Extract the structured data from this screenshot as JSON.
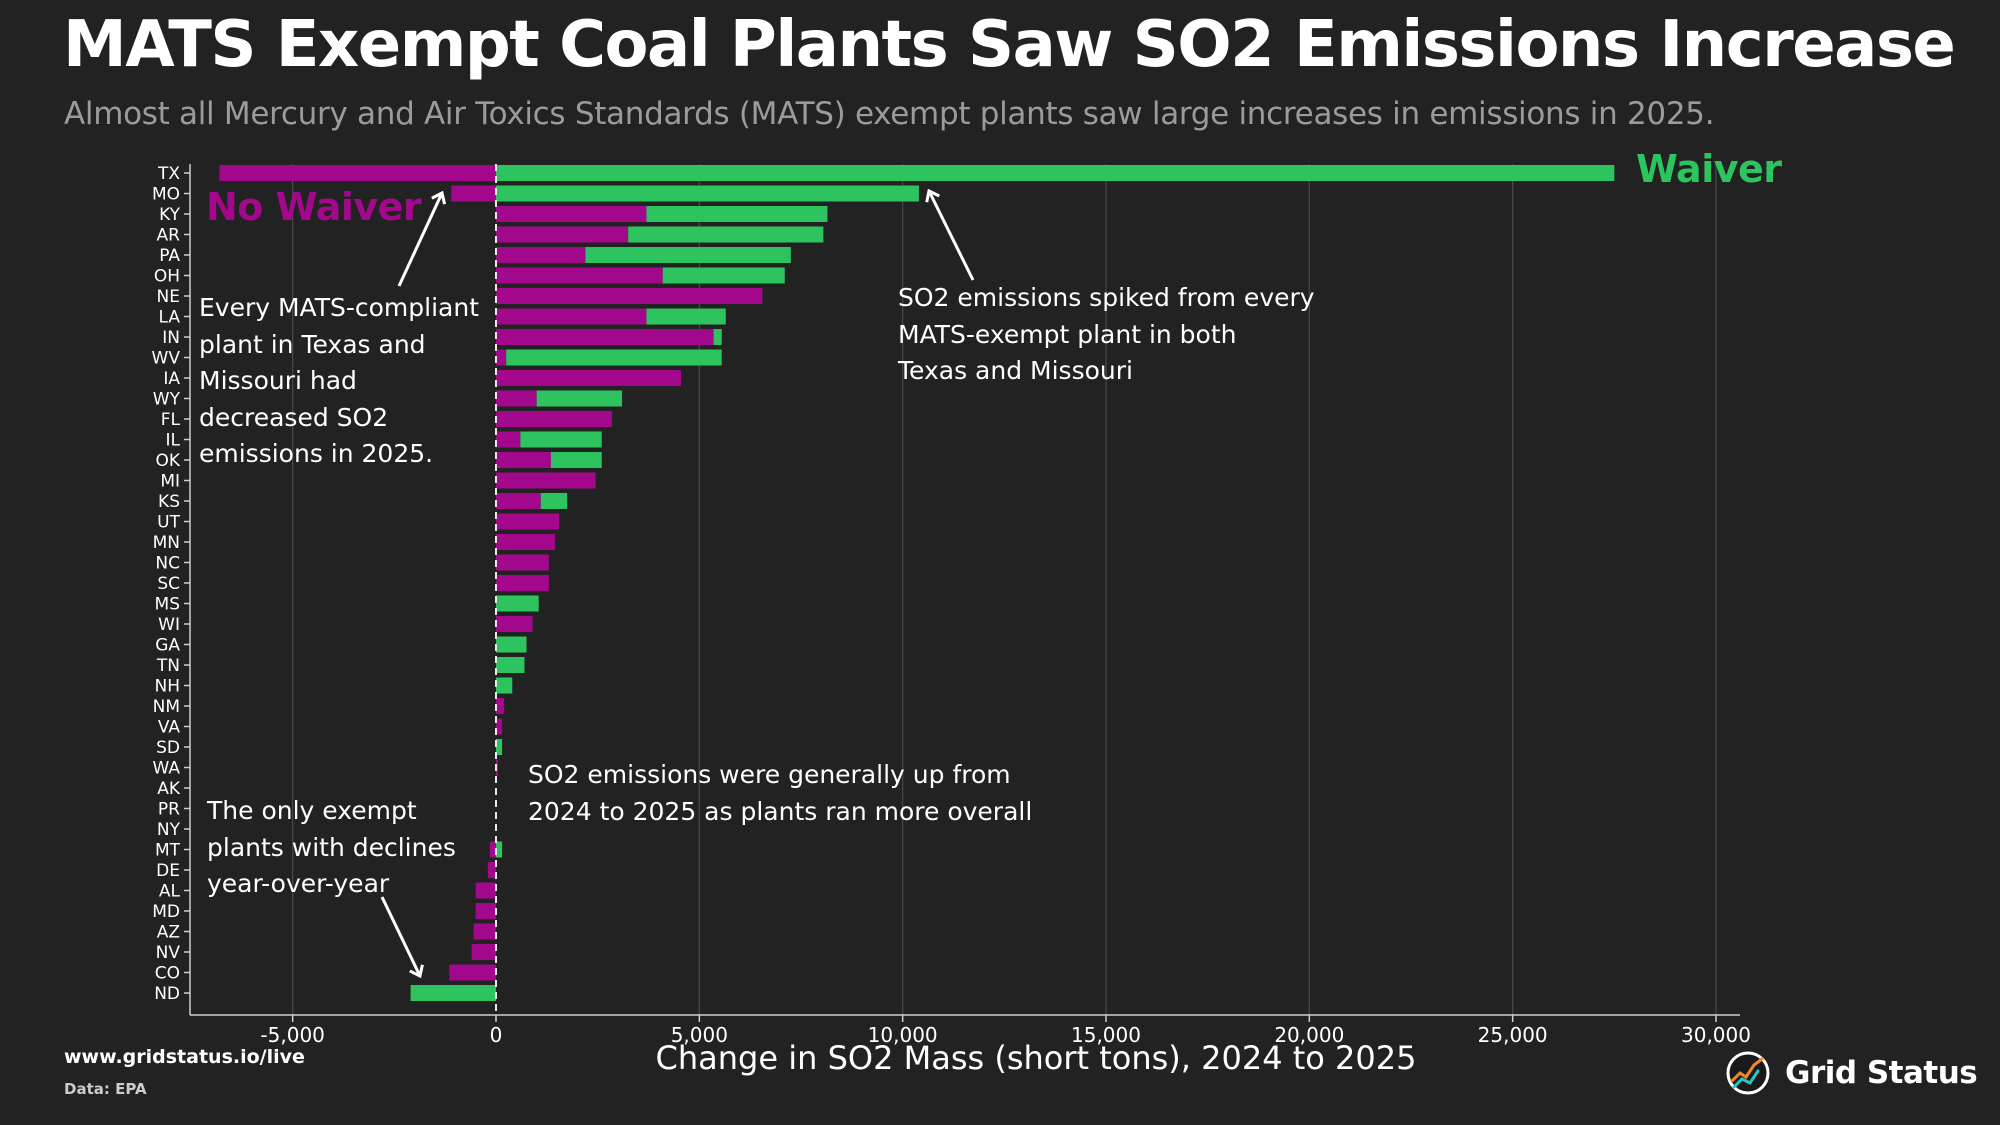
{
  "title": "MATS Exempt Coal Plants Saw SO2 Emissions Increase",
  "subtitle": "Almost all Mercury and Air Toxics Standards (MATS) exempt plants saw large increases in emissions in 2025.",
  "footer": {
    "url": "www.gridstatus.io/live",
    "source": "Data: EPA",
    "brand": "Grid Status"
  },
  "colors": {
    "background": "#222222",
    "no_waiver": "#a3088c",
    "waiver": "#2dc45f",
    "grid": "#4a4a4a",
    "axis": "#cfcfcf",
    "text": "#ffffff",
    "subtitle": "#9b9b9b"
  },
  "labels": {
    "no_waiver": "No Waiver",
    "waiver": "Waiver"
  },
  "annotations": {
    "compliant": "Every MATS-compliant\nplant in Texas and\nMissouri had\ndecreased SO2\nemissions in 2025.",
    "exempt_spike": "SO2 emissions spiked from every\nMATS-exempt plant in both\nTexas and Missouri",
    "general": "SO2 emissions were generally up from\n2024 to 2025 as plants ran more overall",
    "declines": "The only exempt\nplants with declines\nyear-over-year"
  },
  "chart_data": {
    "type": "bar",
    "orientation": "horizontal",
    "stacked": true,
    "title": "MATS Exempt Coal Plants Saw SO2 Emissions Increase",
    "xlabel": "Change in SO2 Mass (short tons), 2024 to 2025",
    "ylabel": "",
    "xlim": [
      -7500,
      30000
    ],
    "xticks": [
      -5000,
      0,
      5000,
      10000,
      15000,
      20000,
      25000,
      30000
    ],
    "xtick_labels": [
      "-5,000",
      "0",
      "5,000",
      "10,000",
      "15,000",
      "20,000",
      "25,000",
      "30,000"
    ],
    "grid": true,
    "categories": [
      "TX",
      "MO",
      "KY",
      "AR",
      "PA",
      "OH",
      "NE",
      "LA",
      "IN",
      "WV",
      "IA",
      "WY",
      "FL",
      "IL",
      "OK",
      "MI",
      "KS",
      "UT",
      "MN",
      "NC",
      "SC",
      "MS",
      "WI",
      "GA",
      "TN",
      "NH",
      "NM",
      "VA",
      "SD",
      "WA",
      "AK",
      "PR",
      "NY",
      "MT",
      "DE",
      "AL",
      "MD",
      "AZ",
      "NV",
      "CO",
      "ND"
    ],
    "series": [
      {
        "name": "No Waiver",
        "values": [
          -6800,
          -1100,
          3700,
          3250,
          2200,
          4100,
          6550,
          3700,
          5350,
          250,
          4550,
          1000,
          2850,
          600,
          1350,
          2450,
          1100,
          1550,
          1450,
          1300,
          1300,
          0,
          900,
          0,
          0,
          0,
          200,
          150,
          0,
          50,
          0,
          0,
          0,
          -150,
          -200,
          -500,
          -500,
          -550,
          -600,
          -1150,
          0
        ]
      },
      {
        "name": "Waiver",
        "values": [
          27500,
          10400,
          4450,
          4800,
          5050,
          3000,
          0,
          1950,
          200,
          5300,
          0,
          2100,
          0,
          2000,
          1250,
          0,
          650,
          0,
          0,
          0,
          0,
          1050,
          0,
          750,
          700,
          400,
          0,
          0,
          150,
          0,
          0,
          0,
          0,
          150,
          0,
          0,
          0,
          0,
          0,
          0,
          -2100
        ]
      }
    ]
  }
}
